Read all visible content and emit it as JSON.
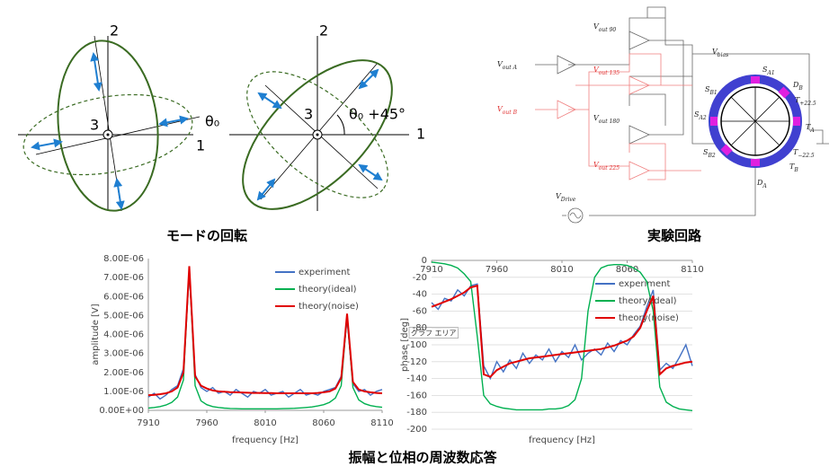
{
  "diagram": {
    "left": {
      "axis_labels": [
        "2",
        "3",
        "1"
      ],
      "angle": "θ₀"
    },
    "right": {
      "axis_labels": [
        "2",
        "3",
        "1"
      ],
      "angle": "θ₀ +45°"
    },
    "caption": "モードの回転"
  },
  "circuit": {
    "caption": "実験回路",
    "labels": [
      {
        "base": "V",
        "sub": "out 90"
      },
      {
        "base": "V",
        "sub": "out A"
      },
      {
        "base": "V",
        "sub": "out 135"
      },
      {
        "base": "V",
        "sub": "bias"
      },
      {
        "base": "S",
        "sub": "A1"
      },
      {
        "base": "D",
        "sub": "B"
      },
      {
        "base": "S",
        "sub": "B1"
      },
      {
        "base": "T",
        "sub": "+22.5"
      },
      {
        "base": "S",
        "sub": "A2"
      },
      {
        "base": "T",
        "sub": "A"
      },
      {
        "base": "T",
        "sub": "−22.5"
      },
      {
        "base": "S",
        "sub": "B2"
      },
      {
        "base": "V",
        "sub": "out B"
      },
      {
        "base": "V",
        "sub": "out 180"
      },
      {
        "base": "V",
        "sub": "out 225"
      },
      {
        "base": "T",
        "sub": "B"
      },
      {
        "base": "D",
        "sub": "A"
      },
      {
        "base": "V",
        "sub": "Drive"
      }
    ]
  },
  "chart_data": [
    {
      "type": "line",
      "xlabel": "frequency [Hz]",
      "ylabel": "amplitude [V]",
      "grid": false,
      "legend": "upper right",
      "xaxis_position": "bottom",
      "xlim": [
        7910,
        8110
      ],
      "xticks": [
        7910,
        7960,
        8010,
        8060,
        8110
      ],
      "ylim": [
        0,
        8e-06
      ],
      "yticks": [
        {
          "value": 0,
          "label": "0.00E+00"
        },
        {
          "value": 1e-06,
          "label": "1.00E-06"
        },
        {
          "value": 2e-06,
          "label": "2.00E-06"
        },
        {
          "value": 3e-06,
          "label": "3.00E-06"
        },
        {
          "value": 4e-06,
          "label": "4.00E-06"
        },
        {
          "value": 5e-06,
          "label": "5.00E-06"
        },
        {
          "value": 6e-06,
          "label": "6.00E-06"
        },
        {
          "value": 7e-06,
          "label": "7.00E-06"
        },
        {
          "value": 8e-06,
          "label": "8.00E-06"
        }
      ],
      "x": [
        7910,
        7915,
        7920,
        7925,
        7930,
        7935,
        7940,
        7945,
        7950,
        7955,
        7960,
        7965,
        7970,
        7975,
        7980,
        7985,
        7990,
        7995,
        8000,
        8005,
        8010,
        8015,
        8020,
        8025,
        8030,
        8035,
        8040,
        8045,
        8050,
        8055,
        8060,
        8065,
        8070,
        8075,
        8080,
        8085,
        8090,
        8095,
        8100,
        8105,
        8110
      ],
      "series": [
        {
          "name": "experiment",
          "color": "#4472c4",
          "values": [
            7e-07,
            9e-07,
            6e-07,
            8e-07,
            1.1e-06,
            1.3e-06,
            2.2e-06,
            7.2e-06,
            1.9e-06,
            1.2e-06,
            1e-06,
            1.2e-06,
            9e-07,
            1e-06,
            8e-07,
            1.1e-06,
            9e-07,
            7e-07,
            1e-06,
            9e-07,
            1.1e-06,
            8e-07,
            9e-07,
            1e-06,
            7e-07,
            9e-07,
            1.1e-06,
            8e-07,
            9e-07,
            8e-07,
            1e-06,
            1.1e-06,
            1.2e-06,
            1.8e-06,
            4.8e-06,
            1.4e-06,
            1e-06,
            1.1e-06,
            8e-07,
            1e-06,
            1.1e-06
          ]
        },
        {
          "name": "theory(ideal)",
          "color": "#00b050",
          "values": [
            1.2e-07,
            1.5e-07,
            2e-07,
            2.8e-07,
            4.2e-07,
            7e-07,
            1.6e-06,
            7.5e-06,
            1.3e-06,
            5e-07,
            3e-07,
            2e-07,
            1.5e-07,
            1.2e-07,
            1e-07,
            9e-08,
            8e-08,
            8e-08,
            8e-08,
            8e-08,
            8e-08,
            8e-08,
            8e-08,
            9e-08,
            1e-07,
            1.1e-07,
            1.3e-07,
            1.5e-07,
            1.8e-07,
            2.3e-07,
            3e-07,
            4.2e-07,
            6.5e-07,
            1.3e-06,
            5e-06,
            1.2e-06,
            5.5e-07,
            3.5e-07,
            2.5e-07,
            2e-07,
            1.6e-07
          ]
        },
        {
          "name": "theory(noise)",
          "color": "#e00000",
          "values": [
            8e-07,
            8.2e-07,
            8.5e-07,
            9e-07,
            1e-06,
            1.2e-06,
            2e-06,
            7.6e-06,
            1.8e-06,
            1.3e-06,
            1.15e-06,
            1.05e-06,
            1e-06,
            9.8e-07,
            9.6e-07,
            9.5e-07,
            9.4e-07,
            9.3e-07,
            9.2e-07,
            9.2e-07,
            9.1e-07,
            9.1e-07,
            9e-07,
            9e-07,
            9e-07,
            9e-07,
            9e-07,
            9e-07,
            9e-07,
            9.2e-07,
            9.5e-07,
            1e-06,
            1.15e-06,
            1.7e-06,
            5.1e-06,
            1.5e-06,
            1.1e-06,
            1e-06,
            9.5e-07,
            9.2e-07,
            9e-07
          ]
        }
      ]
    },
    {
      "type": "line",
      "xlabel": "frequency [Hz]",
      "ylabel": "phase [deg]",
      "grid": true,
      "legend": "upper right",
      "xaxis_position": "top",
      "xlim": [
        7910,
        8110
      ],
      "xticks": [
        7910,
        7960,
        8010,
        8060,
        8110
      ],
      "ylim": [
        -200,
        0
      ],
      "yticks": [
        0,
        -20,
        -40,
        -60,
        -80,
        -100,
        -120,
        -140,
        -160,
        -180,
        -200
      ],
      "x": [
        7910,
        7915,
        7920,
        7925,
        7930,
        7935,
        7940,
        7945,
        7950,
        7955,
        7960,
        7965,
        7970,
        7975,
        7980,
        7985,
        7990,
        7995,
        8000,
        8005,
        8010,
        8015,
        8020,
        8025,
        8030,
        8035,
        8040,
        8045,
        8050,
        8055,
        8060,
        8065,
        8070,
        8075,
        8080,
        8085,
        8090,
        8095,
        8100,
        8105,
        8110
      ],
      "series": [
        {
          "name": "experiment",
          "color": "#4472c4",
          "values": [
            -50,
            -58,
            -45,
            -48,
            -35,
            -42,
            -30,
            -28,
            -125,
            -140,
            -120,
            -132,
            -118,
            -128,
            -110,
            -122,
            -112,
            -118,
            -105,
            -120,
            -108,
            -115,
            -100,
            -118,
            -110,
            -105,
            -112,
            -98,
            -108,
            -95,
            -100,
            -88,
            -78,
            -55,
            -35,
            -130,
            -122,
            -128,
            -115,
            -100,
            -125
          ]
        },
        {
          "name": "theory(ideal)",
          "color": "#00b050",
          "values": [
            -2,
            -3,
            -4,
            -6,
            -9,
            -16,
            -25,
            -90,
            -160,
            -170,
            -173,
            -175,
            -176,
            -177,
            -177,
            -177,
            -177,
            -177,
            -176,
            -176,
            -175,
            -172,
            -165,
            -140,
            -60,
            -20,
            -9,
            -6,
            -5,
            -5,
            -6,
            -9,
            -14,
            -25,
            -60,
            -150,
            -168,
            -173,
            -176,
            -177,
            -178
          ]
        },
        {
          "name": "theory(noise)",
          "color": "#e00000",
          "values": [
            -55,
            -52,
            -49,
            -46,
            -42,
            -38,
            -32,
            -30,
            -135,
            -138,
            -130,
            -126,
            -122,
            -120,
            -118,
            -116,
            -115,
            -114,
            -113,
            -112,
            -111,
            -110,
            -109,
            -108,
            -107,
            -106,
            -105,
            -103,
            -101,
            -98,
            -95,
            -90,
            -80,
            -60,
            -42,
            -135,
            -128,
            -125,
            -123,
            -121,
            -120
          ]
        }
      ]
    }
  ],
  "caption": "振幅と位相の周波数応答",
  "tooltip": "グラフ エリア"
}
